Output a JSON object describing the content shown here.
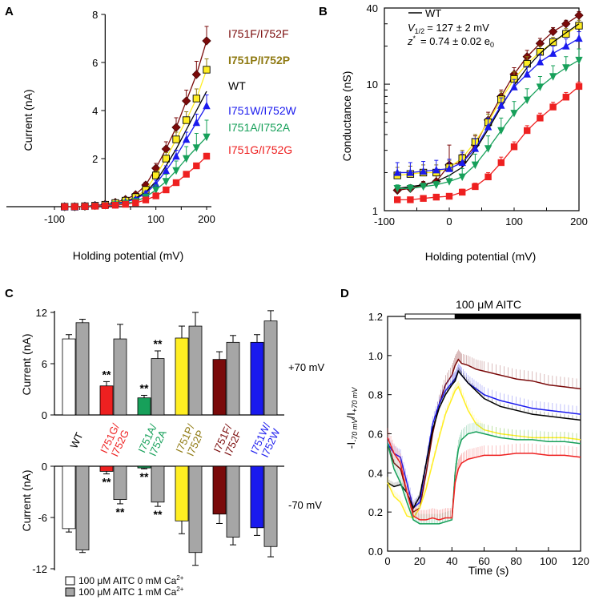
{
  "figure": {
    "panel_labels": [
      "A",
      "B",
      "C",
      "D"
    ]
  },
  "colors": {
    "WT": "#000000",
    "I751F/I752F": "#7a0a0a",
    "I751P/I752P": "#8f7a12",
    "I751W/I752W": "#1a1aee",
    "I751A/I752A": "#17a05a",
    "I751G/I752G": "#ee2020",
    "yellow_fill": "#ffee22",
    "gray_fill": "#a6a6a6"
  },
  "chart_data": [
    {
      "panel": "A",
      "type": "line",
      "xlabel": "Holding potential (mV)",
      "ylabel": "Current (nA)",
      "xlim": [
        -100,
        200
      ],
      "ylim": [
        0,
        8
      ],
      "xticks": [
        -100,
        100,
        200
      ],
      "xtick_labels": [
        "-100",
        "100",
        "200"
      ],
      "yticks": [
        2,
        4,
        6,
        8
      ],
      "ytick_labels": [
        "2",
        "4",
        "6",
        "8"
      ],
      "x": [
        -80,
        -60,
        -40,
        -20,
        0,
        20,
        40,
        60,
        80,
        100,
        120,
        140,
        160,
        180,
        200
      ],
      "series": [
        {
          "name": "I751F/I752F",
          "label": "I751F/I752F",
          "marker": "diamond",
          "values": [
            0.0,
            0.0,
            0.02,
            0.05,
            0.1,
            0.18,
            0.3,
            0.5,
            0.9,
            1.6,
            2.4,
            3.3,
            4.4,
            5.5,
            6.9
          ],
          "errors": [
            0,
            0,
            0,
            0,
            0,
            0,
            0.05,
            0.08,
            0.12,
            0.2,
            0.3,
            0.4,
            0.45,
            0.55,
            0.6
          ]
        },
        {
          "name": "I751P/I752P",
          "label": "I751P/I752P",
          "marker": "square-yellow",
          "values": [
            0.0,
            0.0,
            0.02,
            0.04,
            0.08,
            0.15,
            0.25,
            0.4,
            0.7,
            1.3,
            2.0,
            2.8,
            3.6,
            4.5,
            5.7
          ],
          "errors": [
            0,
            0,
            0,
            0,
            0,
            0,
            0.05,
            0.08,
            0.1,
            0.18,
            0.25,
            0.3,
            0.35,
            0.4,
            0.45
          ]
        },
        {
          "name": "WT",
          "label": "WT",
          "marker": "none",
          "values": [
            0.0,
            0.0,
            0.02,
            0.04,
            0.07,
            0.12,
            0.22,
            0.36,
            0.6,
            1.05,
            1.7,
            2.4,
            3.2,
            4.0,
            4.8
          ],
          "errors": [
            0,
            0,
            0,
            0,
            0,
            0,
            0,
            0,
            0,
            0,
            0,
            0,
            0,
            0,
            0
          ]
        },
        {
          "name": "I751W/I752W",
          "label": "I751W/I752W",
          "marker": "triangle-up",
          "values": [
            0.0,
            0.0,
            0.02,
            0.04,
            0.07,
            0.12,
            0.2,
            0.32,
            0.55,
            0.95,
            1.5,
            2.1,
            2.8,
            3.5,
            4.2
          ],
          "errors": [
            0,
            0,
            0,
            0,
            0,
            0,
            0.04,
            0.06,
            0.1,
            0.15,
            0.2,
            0.25,
            0.3,
            0.35,
            0.45
          ]
        },
        {
          "name": "I751A/I752A",
          "label": "I751A/I752A",
          "marker": "triangle-down",
          "values": [
            0.0,
            0.0,
            0.02,
            0.03,
            0.05,
            0.08,
            0.14,
            0.22,
            0.4,
            0.7,
            1.05,
            1.5,
            2.0,
            2.45,
            2.9
          ],
          "errors": [
            0,
            0,
            0,
            0,
            0,
            0,
            0.04,
            0.06,
            0.12,
            0.2,
            0.3,
            0.4,
            0.5,
            0.6,
            0.7
          ]
        },
        {
          "name": "I751G/I752G",
          "label": "I751G/I752G",
          "marker": "square",
          "values": [
            0.0,
            0.0,
            0.01,
            0.02,
            0.04,
            0.06,
            0.1,
            0.16,
            0.28,
            0.45,
            0.7,
            1.0,
            1.35,
            1.7,
            2.1
          ],
          "errors": [
            0,
            0,
            0,
            0,
            0,
            0,
            0,
            0,
            0,
            0.04,
            0.05,
            0.06,
            0.08,
            0.1,
            0.12
          ]
        }
      ]
    },
    {
      "panel": "B",
      "type": "line",
      "xlabel": "Holding potential (mV)",
      "ylabel": "Conductance (nS)",
      "yscale": "log",
      "xlim": [
        -100,
        200
      ],
      "ylim": [
        1,
        40
      ],
      "xticks": [
        -100,
        0,
        100,
        200
      ],
      "xtick_labels": [
        "-100",
        "0",
        "100",
        "200"
      ],
      "yticks": [
        1,
        10,
        40
      ],
      "ytick_labels": [
        "1",
        "10",
        "40"
      ],
      "legend_label": "WT",
      "annotation_v12": "= 127 ± 2 mV",
      "annotation_z": "= 0.74 ± 0.02 e",
      "annotation_v_symbol": "V",
      "annotation_v_sub": "1/2",
      "annotation_z_symbol": "z",
      "annotation_z_sup": "*",
      "annotation_z_sub": "0",
      "x": [
        -80,
        -60,
        -40,
        -20,
        0,
        20,
        40,
        60,
        80,
        100,
        120,
        140,
        160,
        180,
        200
      ],
      "series": [
        {
          "name": "I751F/I752F",
          "marker": "diamond",
          "values": [
            1.45,
            1.5,
            1.6,
            1.7,
            2.3,
            2.4,
            3.3,
            5.2,
            8.0,
            12.0,
            16.5,
            21.0,
            26.0,
            30.0,
            35.0
          ],
          "errors": [
            0.1,
            0.1,
            0.1,
            0.2,
            1.0,
            0.4,
            0.6,
            0.8,
            1.0,
            1.5,
            2.0,
            2.0,
            2.0,
            2.0,
            2.5
          ]
        },
        {
          "name": "I751P/I752P",
          "marker": "square-yellow",
          "values": [
            1.9,
            1.95,
            2.0,
            2.0,
            2.2,
            2.6,
            3.5,
            5.0,
            7.6,
            11.0,
            14.5,
            18.0,
            21.5,
            25.0,
            29.0
          ],
          "errors": [
            0.3,
            0.3,
            0.3,
            0.3,
            0.3,
            0.4,
            0.5,
            0.8,
            1.1,
            1.5,
            2.0,
            2.0,
            2.0,
            2.5,
            3.0
          ]
        },
        {
          "name": "WT",
          "marker": "none",
          "values": [
            1.5,
            1.55,
            1.6,
            1.7,
            1.9,
            2.2,
            3.0,
            4.4,
            6.6,
            9.8,
            13.5,
            17.5,
            21.5,
            25.5,
            30.0
          ],
          "errors": []
        },
        {
          "name": "I751W/I752W",
          "marker": "triangle-up",
          "values": [
            2.0,
            2.0,
            2.05,
            2.1,
            2.15,
            2.4,
            3.1,
            4.6,
            6.8,
            9.5,
            12.0,
            15.0,
            17.5,
            20.0,
            23.0
          ],
          "errors": [
            0.4,
            0.4,
            0.4,
            0.4,
            0.4,
            0.5,
            0.6,
            0.8,
            1.0,
            1.4,
            1.8,
            2.2,
            2.5,
            2.8,
            3.0
          ]
        },
        {
          "name": "I751A/I752A",
          "marker": "triangle-down",
          "values": [
            1.5,
            1.5,
            1.55,
            1.6,
            1.7,
            1.85,
            2.3,
            3.1,
            4.3,
            5.9,
            7.5,
            9.5,
            11.5,
            13.5,
            15.5
          ],
          "errors": [
            0.1,
            0.1,
            0.1,
            0.1,
            0.2,
            0.3,
            0.5,
            0.8,
            1.1,
            1.4,
            1.7,
            2.0,
            2.5,
            3.0,
            3.5
          ]
        },
        {
          "name": "I751G/I752G",
          "marker": "square",
          "values": [
            1.22,
            1.22,
            1.25,
            1.28,
            1.3,
            1.4,
            1.55,
            1.85,
            2.4,
            3.2,
            4.3,
            5.4,
            6.6,
            7.9,
            9.6
          ],
          "errors": [
            0.02,
            0.02,
            0.03,
            0.05,
            0.05,
            0.08,
            0.1,
            0.15,
            0.25,
            0.3,
            0.4,
            0.5,
            0.6,
            0.7,
            0.8
          ]
        }
      ]
    },
    {
      "panel": "C",
      "type": "bar",
      "categories": [
        "WT",
        "I751G/\nI752G",
        "I751A/\nI752A",
        "I751P/\nI752P",
        "I751F/\nI752F",
        "I751W/\nI752W"
      ],
      "category_lines": [
        [
          "WT"
        ],
        [
          "I751G/",
          "I752G"
        ],
        [
          "I751A/",
          "I752A"
        ],
        [
          "I751P/",
          "I752P"
        ],
        [
          "I751F/",
          "I752F"
        ],
        [
          "I751W/",
          "I752W"
        ]
      ],
      "category_colors": [
        "#000000",
        "#ee2020",
        "#17a05a",
        "#8f7a12",
        "#7a0a0a",
        "#1a1aee"
      ],
      "ylabel_top": "Current (nA)",
      "ylabel_bottom": "Current (nA)",
      "top_ylim": [
        0,
        12
      ],
      "top_yticks": [
        0,
        6,
        12
      ],
      "top_ytick_labels": [
        "0",
        "6",
        "12"
      ],
      "bottom_ylim": [
        -12,
        0
      ],
      "bottom_yticks": [
        0,
        -6,
        -12
      ],
      "bottom_ytick_labels": [
        "0",
        "-6",
        "-12"
      ],
      "top_label": "+70 mV",
      "bottom_label": "-70 mV",
      "legend": [
        "100 μM AITC 0 mM Ca",
        "100 μM AITC 1 mM Ca"
      ],
      "legend_sup": "2+",
      "series": [
        {
          "name": "100 μM AITC 0 mM Ca2+",
          "fills": [
            "#ffffff",
            "#ee2020",
            "#17a05a",
            "#ffee22",
            "#7a0a0a",
            "#1a1aee"
          ],
          "top_values": [
            8.9,
            3.4,
            2.0,
            9.0,
            6.5,
            8.5
          ],
          "top_errors": [
            0.5,
            0.5,
            0.3,
            1.4,
            0.9,
            0.9
          ],
          "bottom_values": [
            -7.3,
            -0.6,
            -0.2,
            -6.4,
            -5.6,
            -7.2
          ],
          "bottom_errors": [
            0.4,
            0.3,
            0.1,
            1.5,
            1.1,
            0.9
          ],
          "top_sig": [
            "",
            "**",
            "**",
            "",
            "",
            ""
          ],
          "bottom_sig": [
            "",
            "**",
            "**",
            "",
            "",
            ""
          ]
        },
        {
          "name": "100 μM AITC 1 mM Ca2+",
          "fills": [
            "#a6a6a6",
            "#a6a6a6",
            "#a6a6a6",
            "#a6a6a6",
            "#a6a6a6",
            "#a6a6a6"
          ],
          "top_values": [
            10.8,
            8.9,
            6.6,
            10.4,
            8.5,
            11.0
          ],
          "top_errors": [
            0.4,
            1.7,
            0.9,
            1.6,
            0.8,
            1.2
          ],
          "bottom_values": [
            -9.8,
            -3.9,
            -4.2,
            -10.1,
            -8.3,
            -9.4
          ],
          "bottom_errors": [
            0.3,
            0.5,
            0.5,
            1.5,
            0.9,
            1.2
          ],
          "top_sig": [
            "",
            "",
            "**",
            "",
            "",
            ""
          ],
          "bottom_sig": [
            "",
            "**",
            "**",
            "",
            "",
            ""
          ]
        }
      ]
    },
    {
      "panel": "D",
      "type": "line",
      "xlabel": "Time (s)",
      "ylabel": "-I-70 mV/I+70 mV",
      "ylabel_parts": [
        "-I",
        "-70 mV",
        "/I",
        "+70 mV"
      ],
      "xlim": [
        0,
        120
      ],
      "ylim": [
        0,
        1.2
      ],
      "xticks": [
        0,
        20,
        40,
        60,
        80,
        100,
        120
      ],
      "xtick_labels": [
        "0",
        "20",
        "40",
        "60",
        "80",
        "100",
        "120"
      ],
      "yticks": [
        0.0,
        0.2,
        0.4,
        0.6,
        0.8,
        1.0,
        1.2
      ],
      "ytick_labels": [
        "0.0",
        "0.2",
        "0.4",
        "0.6",
        "0.8",
        "1.0",
        "1.2"
      ],
      "bar_label": "100 μM AITC",
      "bar_open": [
        11,
        42
      ],
      "bar_filled": [
        42,
        120
      ],
      "x": [
        0,
        4,
        8,
        12,
        16,
        20,
        24,
        28,
        32,
        36,
        40,
        42,
        44,
        46,
        50,
        55,
        60,
        70,
        80,
        90,
        100,
        110,
        120
      ],
      "series": [
        {
          "name": "I751F/I752F",
          "color": "#7a0a0a",
          "values": [
            0.55,
            0.45,
            0.42,
            0.3,
            0.2,
            0.22,
            0.4,
            0.6,
            0.75,
            0.85,
            0.9,
            0.95,
            0.98,
            0.96,
            0.95,
            0.93,
            0.92,
            0.9,
            0.88,
            0.87,
            0.85,
            0.84,
            0.83
          ],
          "err": 0.05
        },
        {
          "name": "I751W/I752W",
          "color": "#1a1aee",
          "values": [
            0.55,
            0.5,
            0.48,
            0.35,
            0.22,
            0.25,
            0.45,
            0.65,
            0.75,
            0.82,
            0.86,
            0.88,
            0.92,
            0.9,
            0.86,
            0.83,
            0.8,
            0.77,
            0.75,
            0.73,
            0.72,
            0.71,
            0.7
          ],
          "err": 0.04
        },
        {
          "name": "WT",
          "color": "#000000",
          "values": [
            0.35,
            0.33,
            0.34,
            0.3,
            0.22,
            0.28,
            0.45,
            0.62,
            0.73,
            0.8,
            0.85,
            0.87,
            0.92,
            0.9,
            0.86,
            0.82,
            0.78,
            0.74,
            0.72,
            0.7,
            0.69,
            0.68,
            0.67
          ],
          "err": 0.02
        },
        {
          "name": "I751P/I752P",
          "color": "#ffee22",
          "values": [
            0.35,
            0.28,
            0.25,
            0.18,
            0.17,
            0.22,
            0.32,
            0.45,
            0.58,
            0.7,
            0.78,
            0.82,
            0.84,
            0.8,
            0.72,
            0.65,
            0.62,
            0.6,
            0.59,
            0.58,
            0.58,
            0.58,
            0.57
          ],
          "err": 0.03
        },
        {
          "name": "I751A/I752A",
          "color": "#17a05a",
          "values": [
            0.55,
            0.42,
            0.35,
            0.25,
            0.16,
            0.14,
            0.14,
            0.14,
            0.14,
            0.15,
            0.16,
            0.4,
            0.52,
            0.57,
            0.6,
            0.61,
            0.6,
            0.58,
            0.57,
            0.57,
            0.56,
            0.56,
            0.55
          ],
          "err": 0.05
        },
        {
          "name": "I751G/I752G",
          "color": "#ee2020",
          "values": [
            0.58,
            0.5,
            0.45,
            0.3,
            0.18,
            0.16,
            0.16,
            0.17,
            0.16,
            0.17,
            0.17,
            0.35,
            0.42,
            0.45,
            0.47,
            0.48,
            0.49,
            0.49,
            0.5,
            0.5,
            0.49,
            0.49,
            0.48
          ],
          "err": 0.05
        }
      ]
    }
  ]
}
